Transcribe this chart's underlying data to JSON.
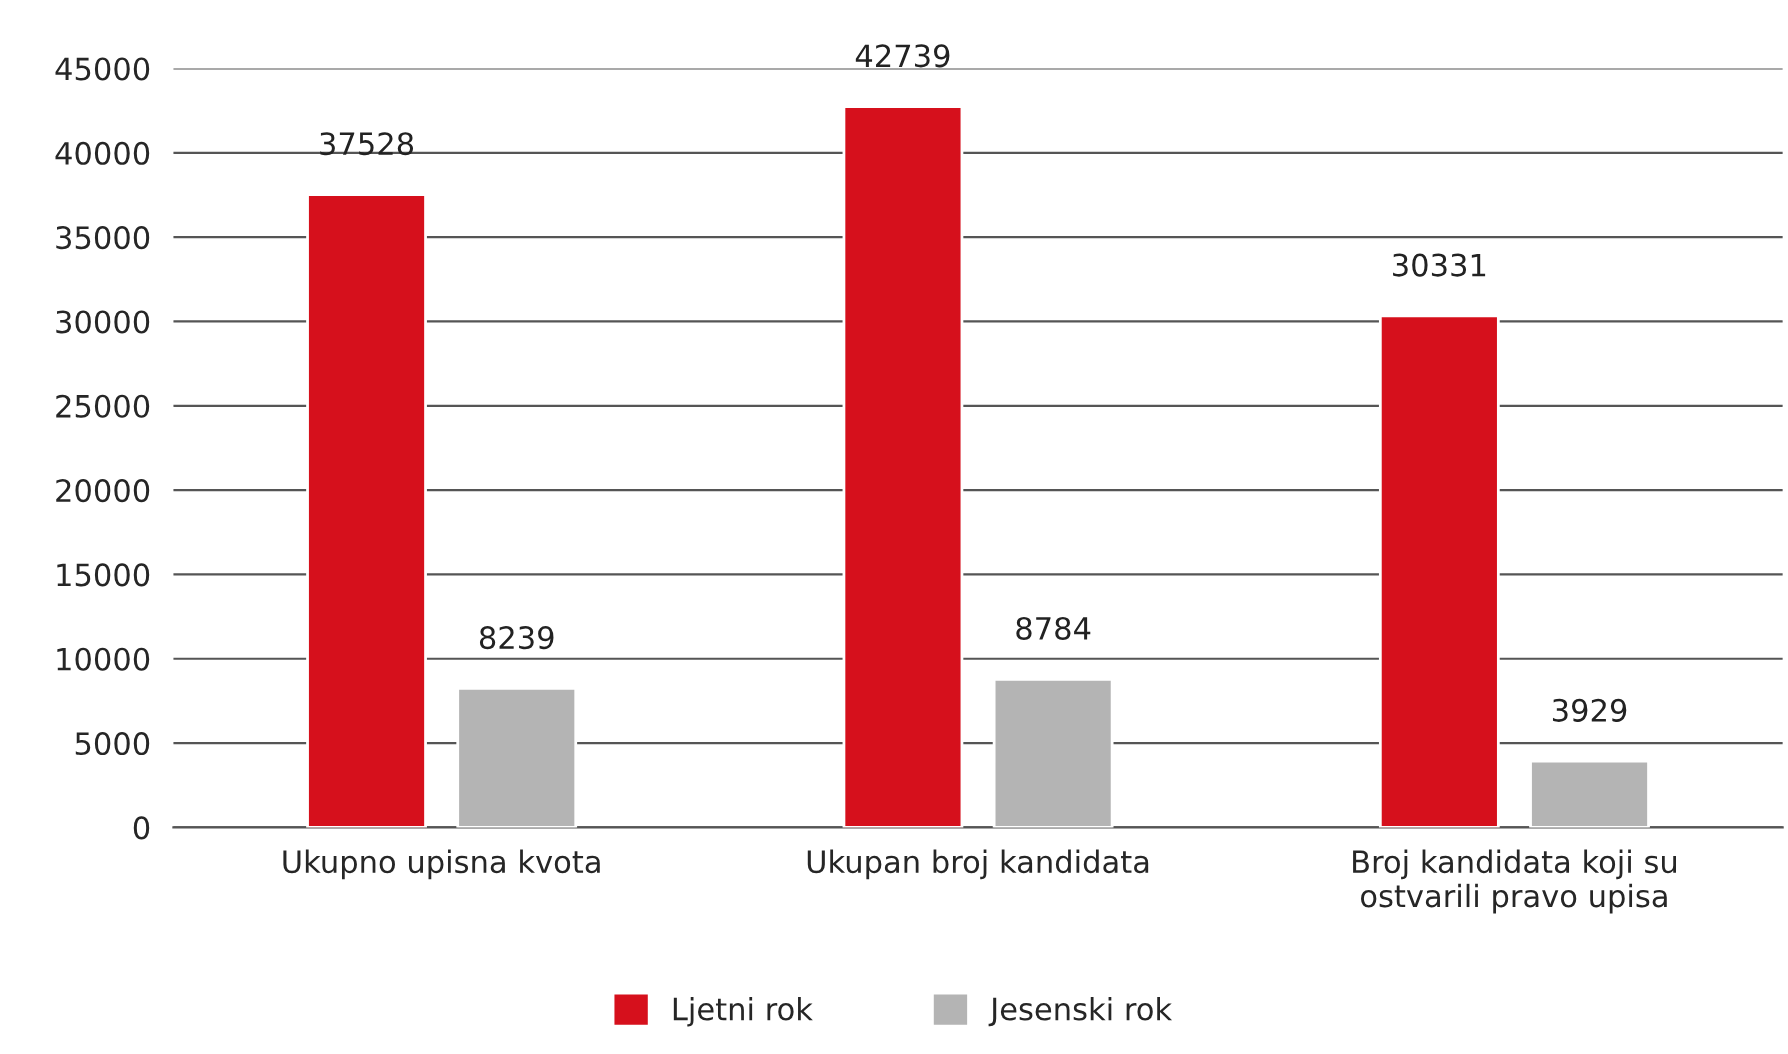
{
  "chart_data": {
    "type": "bar",
    "categories": [
      "Ukupno upisna kvota",
      "Ukupan broj kandidata",
      "Broj kandidata koji su\nostvarili pravo upisa"
    ],
    "series": [
      {
        "name": "Ljetni rok",
        "color": "#d6101c",
        "values": [
          37528,
          42739,
          30331
        ]
      },
      {
        "name": "Jesenski rok",
        "color": "#b4b4b4",
        "values": [
          8239,
          8784,
          3929
        ]
      }
    ],
    "ylim": [
      0,
      45000
    ],
    "yticks": [
      0,
      5000,
      10000,
      15000,
      20000,
      25000,
      30000,
      35000,
      40000,
      45000
    ],
    "grid": "y",
    "legend": "bottom",
    "data_labels": true
  }
}
